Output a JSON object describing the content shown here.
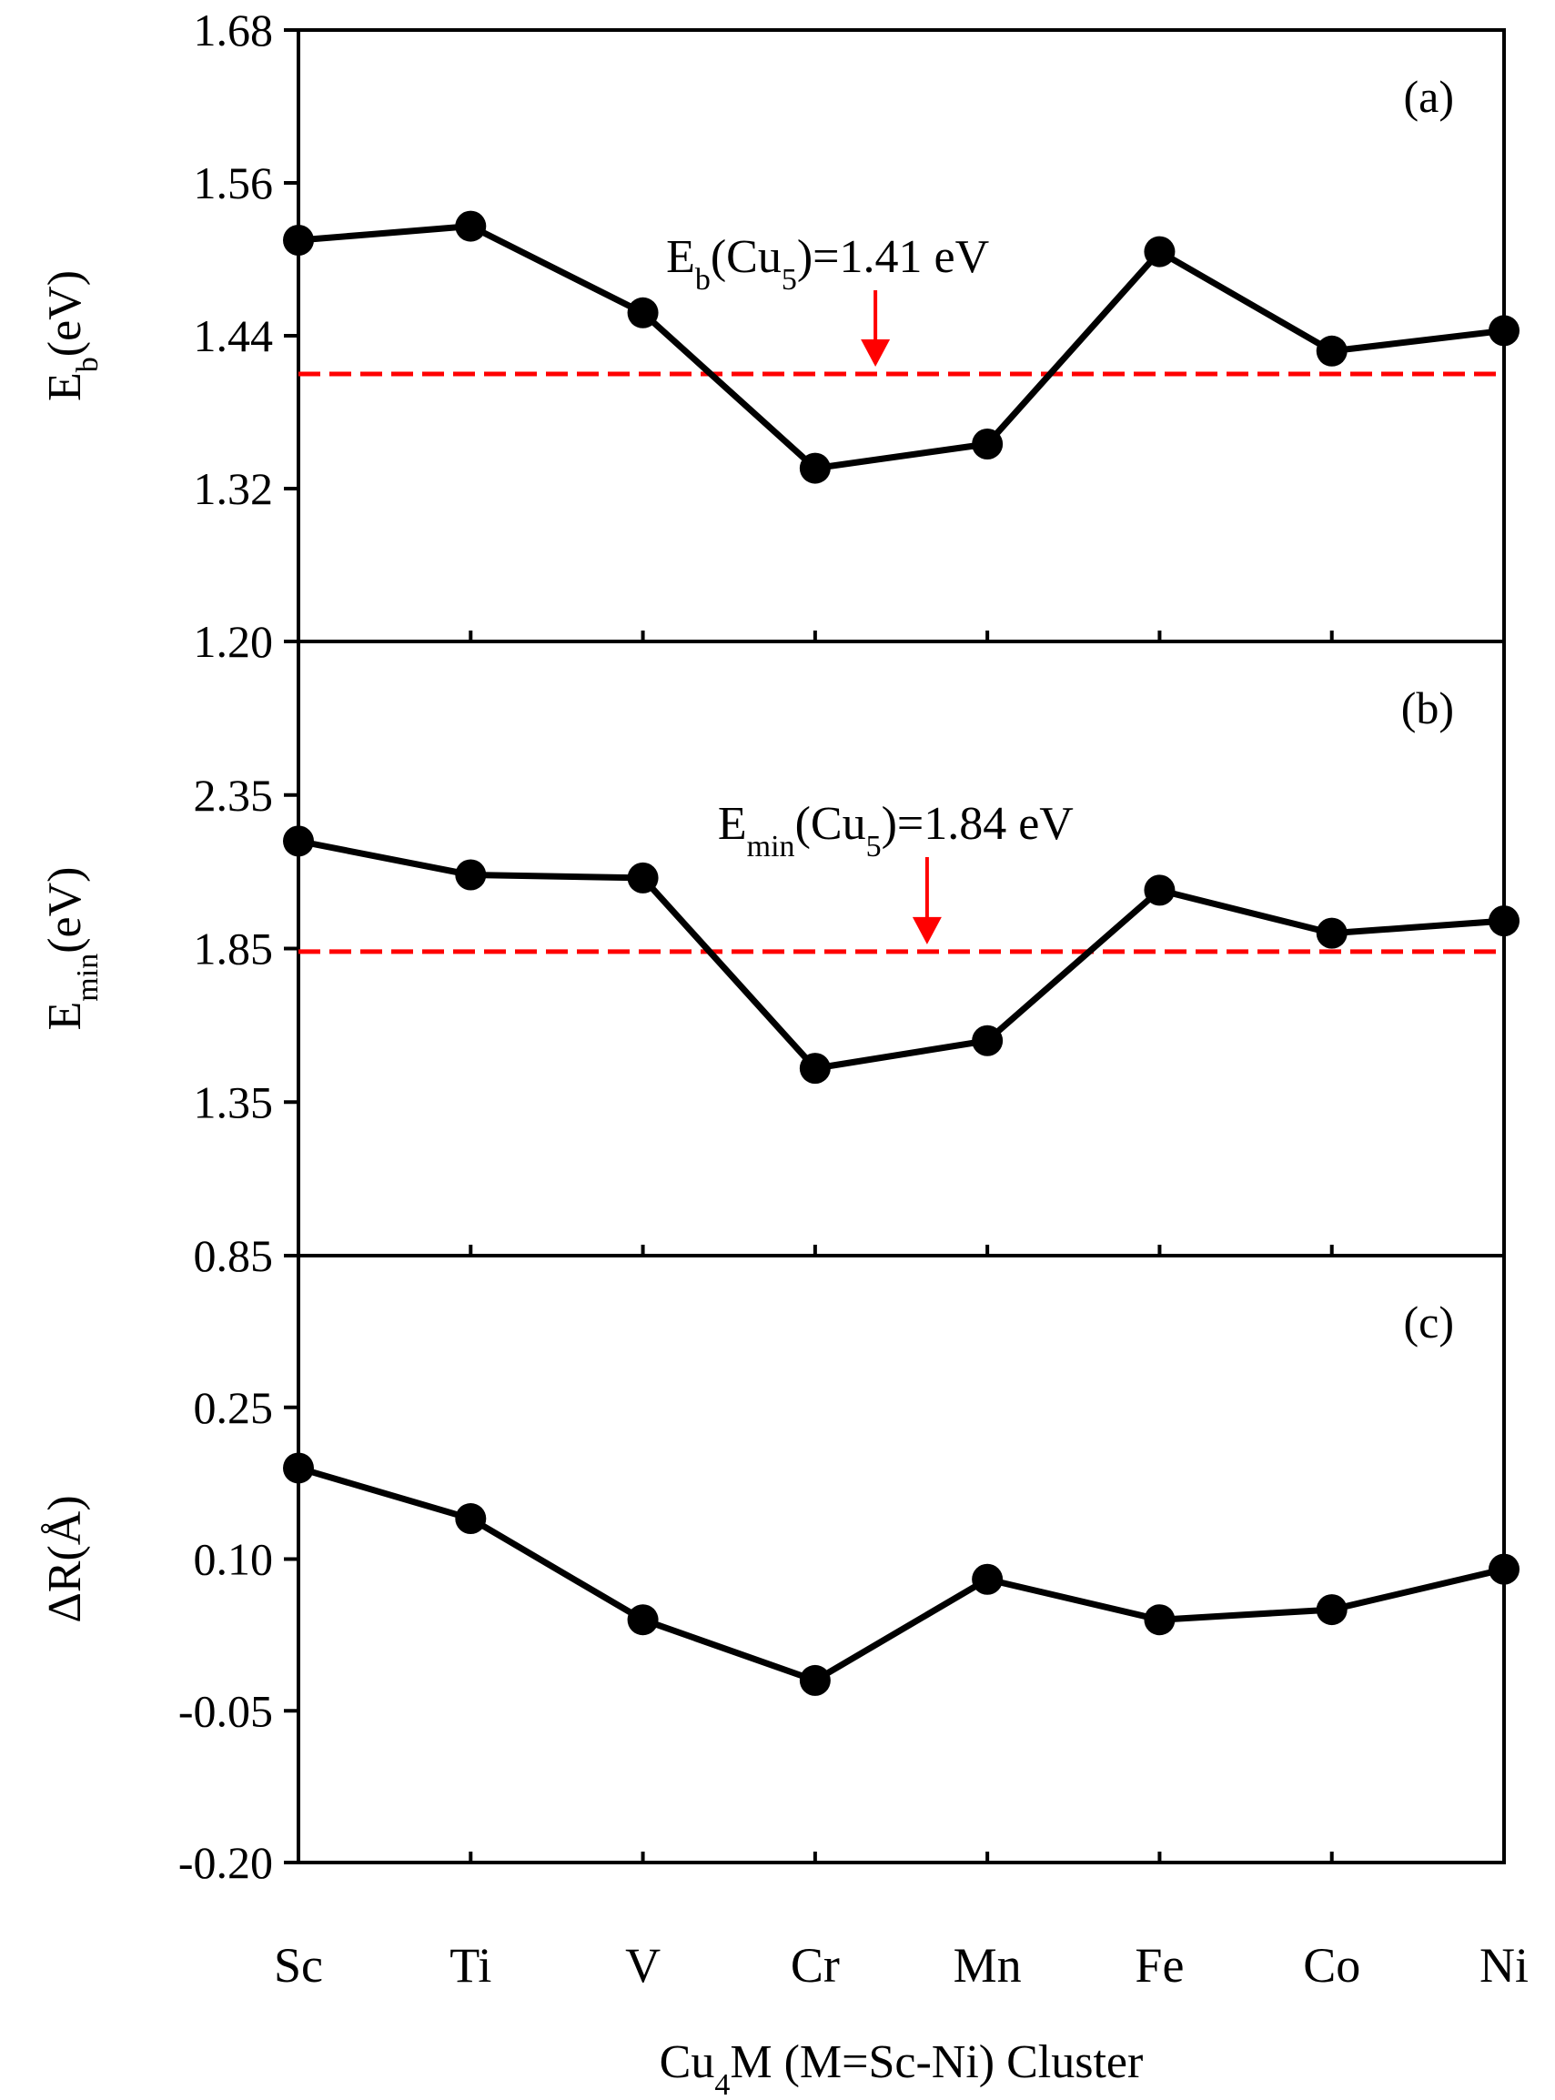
{
  "chart_data": [
    {
      "type": "line",
      "panel_label": "(a)",
      "ylabel": {
        "main": "E",
        "sub": "b",
        "rest": "(eV)"
      },
      "ylim": [
        1.2,
        1.68
      ],
      "yticks": [
        "1.20",
        "1.32",
        "1.44",
        "1.56",
        "1.68"
      ],
      "categories": [
        "Sc",
        "Ti",
        "V",
        "Cr",
        "Mn",
        "Fe",
        "Co",
        "Ni"
      ],
      "series": [
        {
          "name": "Cu4M",
          "values": [
            1.515,
            1.526,
            1.458,
            1.336,
            1.355,
            1.506,
            1.428,
            1.444
          ]
        }
      ],
      "reference_line": {
        "value": 1.41,
        "color": "#ff0000",
        "style": "dashed"
      },
      "annotation": {
        "parts": [
          {
            "t": "E"
          },
          {
            "t": "b",
            "sub": true
          },
          {
            "t": "(Cu"
          },
          {
            "t": "5",
            "sub": true
          },
          {
            "t": ")=1.41 eV"
          }
        ],
        "arrow_x_category_position": 3.35,
        "arrow_color": "#ff0000"
      }
    },
    {
      "type": "line",
      "panel_label": "(b)",
      "ylabel": {
        "main": "E",
        "sub": "min",
        "rest": "(eV)"
      },
      "ylim": [
        0.85,
        2.85
      ],
      "yticks": [
        "0.85",
        "1.35",
        "1.85",
        "2.35"
      ],
      "categories": [
        "Sc",
        "Ti",
        "V",
        "Cr",
        "Mn",
        "Fe",
        "Co",
        "Ni"
      ],
      "series": [
        {
          "name": "Cu4M",
          "values": [
            2.2,
            2.09,
            2.08,
            1.46,
            1.55,
            2.04,
            1.9,
            1.94
          ]
        }
      ],
      "reference_line": {
        "value": 1.84,
        "color": "#ff0000",
        "style": "dashed"
      },
      "annotation": {
        "parts": [
          {
            "t": "E"
          },
          {
            "t": "min",
            "sub": true
          },
          {
            "t": "(Cu"
          },
          {
            "t": "5",
            "sub": true
          },
          {
            "t": ")=1.84 eV"
          }
        ],
        "arrow_x_category_position": 3.65,
        "arrow_color": "#ff0000"
      }
    },
    {
      "type": "line",
      "panel_label": "(c)",
      "ylabel": {
        "main": "ΔR(Å)",
        "sub": "",
        "rest": ""
      },
      "ylim": [
        -0.2,
        0.4
      ],
      "yticks": [
        "-0.20",
        "-0.05",
        "0.10",
        "0.25"
      ],
      "categories": [
        "Sc",
        "Ti",
        "V",
        "Cr",
        "Mn",
        "Fe",
        "Co",
        "Ni"
      ],
      "series": [
        {
          "name": "Cu4M",
          "values": [
            0.19,
            0.14,
            0.04,
            -0.02,
            0.08,
            0.04,
            0.05,
            0.09
          ]
        }
      ]
    }
  ],
  "xaxis": {
    "categories": [
      "Sc",
      "Ti",
      "V",
      "Cr",
      "Mn",
      "Fe",
      "Co",
      "Ni"
    ],
    "title_parts": [
      {
        "t": "Cu"
      },
      {
        "t": "4",
        "sub": true
      },
      {
        "t": "M (M=Sc-Ni) Cluster"
      }
    ]
  },
  "colors": {
    "line": "#000000",
    "marker": "#000000",
    "reference": "#ff0000"
  }
}
